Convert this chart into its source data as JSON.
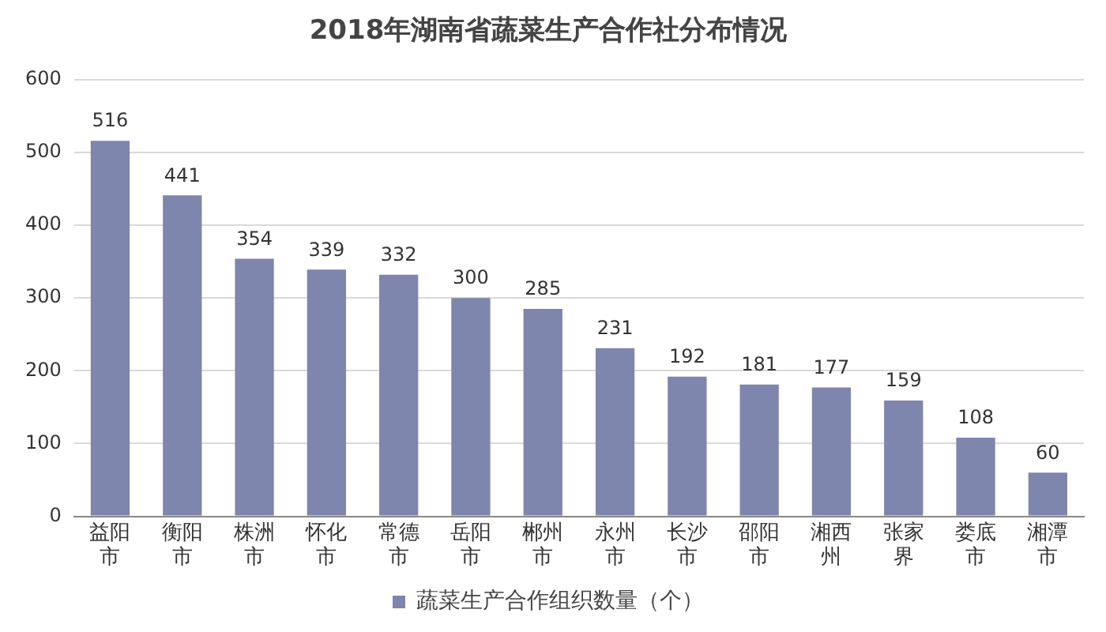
{
  "chart_data": {
    "type": "bar",
    "title": "2018年湖南省蔬菜生产合作社分布情况",
    "categories": [
      "益阳市",
      "衡阳市",
      "株洲市",
      "怀化市",
      "常德市",
      "岳阳市",
      "郴州市",
      "永州市",
      "长沙市",
      "邵阳市",
      "湘西州",
      "张家界",
      "娄底市",
      "湘潭市"
    ],
    "series": [
      {
        "name": "蔬菜生产合作组织数量（个）",
        "color": "#7e86ad",
        "values": [
          516,
          441,
          354,
          339,
          332,
          300,
          285,
          231,
          192,
          181,
          177,
          159,
          108,
          60
        ]
      }
    ],
    "ylim": [
      0,
      600
    ],
    "yticks": [
      0,
      100,
      200,
      300,
      400,
      500,
      600
    ],
    "grid": "y",
    "legend": "bottom",
    "data_labels": true
  }
}
